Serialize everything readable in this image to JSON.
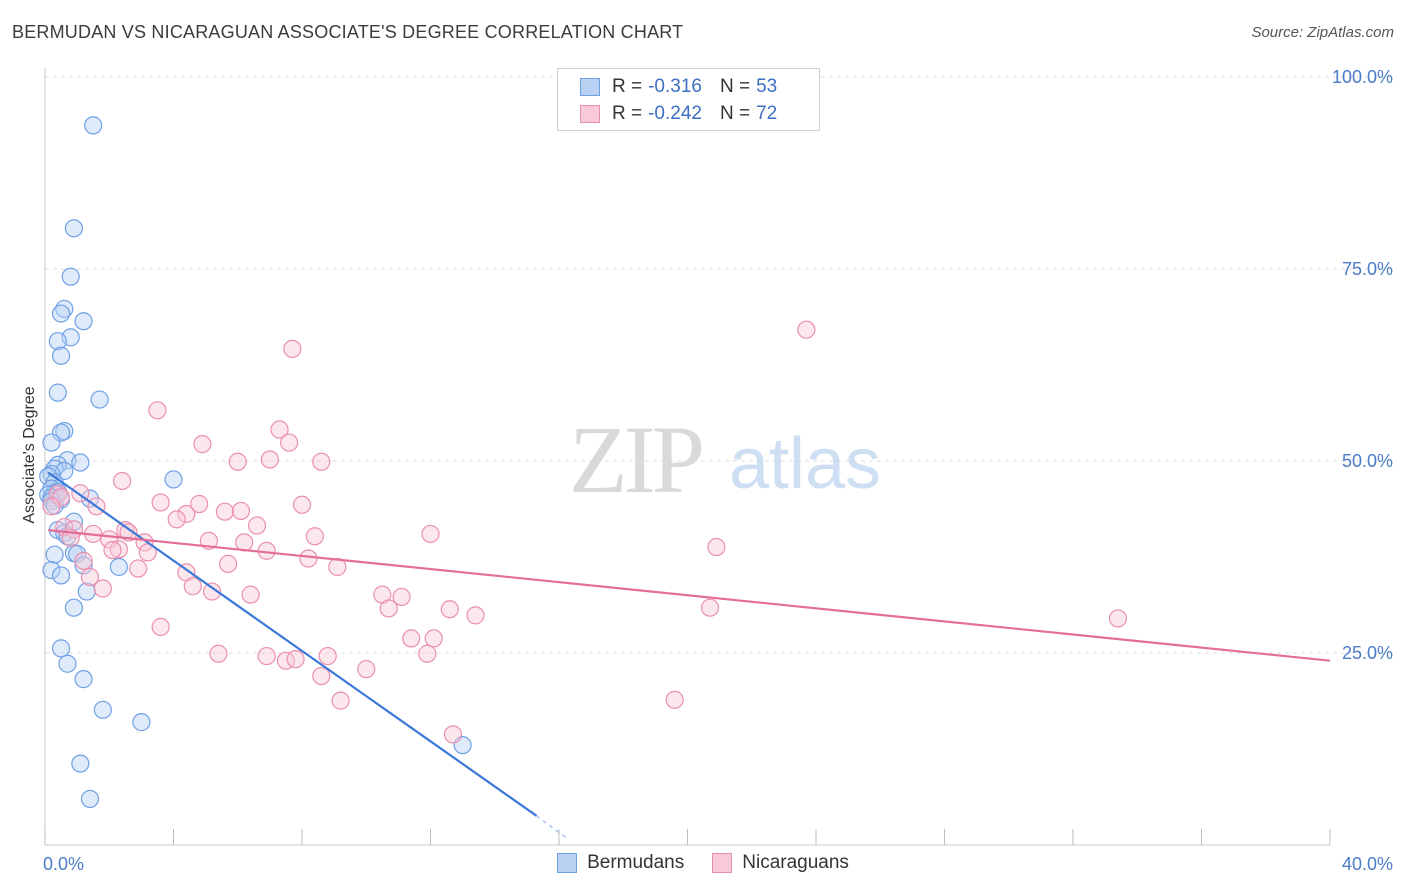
{
  "title": "BERMUDAN VS NICARAGUAN ASSOCIATE'S DEGREE CORRELATION CHART",
  "source": "Source: ZipAtlas.com",
  "watermark": {
    "zip": "ZIP",
    "atlas": "atlas"
  },
  "legend": {
    "rows": [
      {
        "r_label": "R =",
        "r_value": "-0.316",
        "n_label": "N =",
        "n_value": "53",
        "color": "#6fa0e6",
        "fill": "#b9d2f3"
      },
      {
        "r_label": "R =",
        "r_value": "-0.242",
        "n_label": "N =",
        "n_value": "72",
        "color": "#eb8fae",
        "fill": "#f8c9d8"
      }
    ]
  },
  "bottom_legend": [
    {
      "label": "Bermudans",
      "color": "#6fa0e6",
      "fill": "#b9d2f3"
    },
    {
      "label": "Nicaraguans",
      "color": "#eb8fae",
      "fill": "#f8c9d8"
    }
  ],
  "chart_data": {
    "type": "scatter",
    "ylabel": "Associate's Degree",
    "xlim": [
      0,
      40
    ],
    "ylim": [
      0,
      100
    ],
    "x_tick_labels": [
      "0.0%",
      "40.0%"
    ],
    "y_tick_labels": [
      "25.0%",
      "50.0%",
      "75.0%",
      "100.0%"
    ],
    "y_ticks": [
      25,
      50,
      75,
      100
    ],
    "grid": true,
    "series": [
      {
        "name": "Bermudans",
        "color": "#3b78d8",
        "point_color": "#6fa0e6",
        "trend": {
          "x": [
            0.1,
            15.3
          ],
          "y": [
            48.5,
            3.8
          ],
          "dashed_extension_to": [
            16.2,
            1.0
          ]
        },
        "points": [
          [
            1.5,
            93.7
          ],
          [
            0.9,
            80.3
          ],
          [
            0.8,
            74.0
          ],
          [
            0.6,
            69.8
          ],
          [
            0.5,
            69.2
          ],
          [
            1.2,
            68.2
          ],
          [
            0.8,
            66.1
          ],
          [
            0.4,
            65.6
          ],
          [
            0.5,
            63.7
          ],
          [
            0.4,
            58.9
          ],
          [
            1.7,
            58.0
          ],
          [
            0.6,
            53.9
          ],
          [
            0.5,
            53.7
          ],
          [
            0.2,
            52.4
          ],
          [
            0.7,
            50.1
          ],
          [
            1.1,
            49.8
          ],
          [
            0.4,
            49.5
          ],
          [
            0.3,
            49.0
          ],
          [
            0.6,
            48.7
          ],
          [
            0.2,
            48.3
          ],
          [
            0.1,
            48.0
          ],
          [
            0.3,
            47.2
          ],
          [
            4.0,
            47.6
          ],
          [
            0.2,
            46.4
          ],
          [
            0.4,
            46.0
          ],
          [
            0.3,
            45.8
          ],
          [
            0.1,
            45.6
          ],
          [
            0.2,
            45.2
          ],
          [
            0.5,
            45.0
          ],
          [
            1.4,
            45.1
          ],
          [
            0.2,
            44.8
          ],
          [
            0.3,
            44.2
          ],
          [
            0.9,
            42.1
          ],
          [
            0.4,
            41.0
          ],
          [
            0.6,
            40.6
          ],
          [
            0.7,
            40.2
          ],
          [
            0.9,
            38.0
          ],
          [
            1.0,
            37.9
          ],
          [
            0.3,
            37.8
          ],
          [
            1.2,
            36.4
          ],
          [
            2.3,
            36.2
          ],
          [
            0.2,
            35.8
          ],
          [
            0.5,
            35.1
          ],
          [
            1.3,
            33.0
          ],
          [
            0.9,
            30.9
          ],
          [
            0.5,
            25.6
          ],
          [
            0.7,
            23.6
          ],
          [
            1.2,
            21.6
          ],
          [
            1.8,
            17.6
          ],
          [
            3.0,
            16.0
          ],
          [
            13.0,
            13.0
          ],
          [
            1.1,
            10.6
          ],
          [
            1.4,
            6.0
          ]
        ]
      },
      {
        "name": "Nicaraguans",
        "color": "#e46e98",
        "point_color": "#eb8fae",
        "trend": {
          "x": [
            0.1,
            40.0
          ],
          "y": [
            41.0,
            24.0
          ]
        },
        "points": [
          [
            0.4,
            45.7
          ],
          [
            0.5,
            45.3
          ],
          [
            0.2,
            44.1
          ],
          [
            0.6,
            41.4
          ],
          [
            0.9,
            41.1
          ],
          [
            0.8,
            40.0
          ],
          [
            1.1,
            45.8
          ],
          [
            1.6,
            44.1
          ],
          [
            1.5,
            40.5
          ],
          [
            2.0,
            39.8
          ],
          [
            2.5,
            41.0
          ],
          [
            2.6,
            40.7
          ],
          [
            2.3,
            38.5
          ],
          [
            3.1,
            39.4
          ],
          [
            2.1,
            38.4
          ],
          [
            3.2,
            38.1
          ],
          [
            1.2,
            37.0
          ],
          [
            2.9,
            36.0
          ],
          [
            1.4,
            34.9
          ],
          [
            1.8,
            33.4
          ],
          [
            2.4,
            47.4
          ],
          [
            3.5,
            56.6
          ],
          [
            3.6,
            44.6
          ],
          [
            4.4,
            43.1
          ],
          [
            4.1,
            42.4
          ],
          [
            4.8,
            44.4
          ],
          [
            4.9,
            52.2
          ],
          [
            5.1,
            39.6
          ],
          [
            5.6,
            43.4
          ],
          [
            6.0,
            49.9
          ],
          [
            6.1,
            43.5
          ],
          [
            6.2,
            39.4
          ],
          [
            6.6,
            41.6
          ],
          [
            6.9,
            38.3
          ],
          [
            7.0,
            50.2
          ],
          [
            7.3,
            54.1
          ],
          [
            7.6,
            52.4
          ],
          [
            7.7,
            64.6
          ],
          [
            8.0,
            44.3
          ],
          [
            8.4,
            40.2
          ],
          [
            8.2,
            37.3
          ],
          [
            8.6,
            49.9
          ],
          [
            9.1,
            36.2
          ],
          [
            4.4,
            35.5
          ],
          [
            4.6,
            33.7
          ],
          [
            5.2,
            33.0
          ],
          [
            5.7,
            36.6
          ],
          [
            6.4,
            32.6
          ],
          [
            3.6,
            28.4
          ],
          [
            5.4,
            24.9
          ],
          [
            6.9,
            24.6
          ],
          [
            7.5,
            24.0
          ],
          [
            7.8,
            24.2
          ],
          [
            8.8,
            24.6
          ],
          [
            8.6,
            22.0
          ],
          [
            9.2,
            18.8
          ],
          [
            10.0,
            22.9
          ],
          [
            10.5,
            32.6
          ],
          [
            10.7,
            30.8
          ],
          [
            11.1,
            32.3
          ],
          [
            11.4,
            26.9
          ],
          [
            11.9,
            24.9
          ],
          [
            12.1,
            26.9
          ],
          [
            12.0,
            40.5
          ],
          [
            12.6,
            30.7
          ],
          [
            13.4,
            29.9
          ],
          [
            12.7,
            14.4
          ],
          [
            20.9,
            38.8
          ],
          [
            20.7,
            30.9
          ],
          [
            19.6,
            18.9
          ],
          [
            23.7,
            67.1
          ],
          [
            33.4,
            29.5
          ]
        ]
      }
    ]
  }
}
